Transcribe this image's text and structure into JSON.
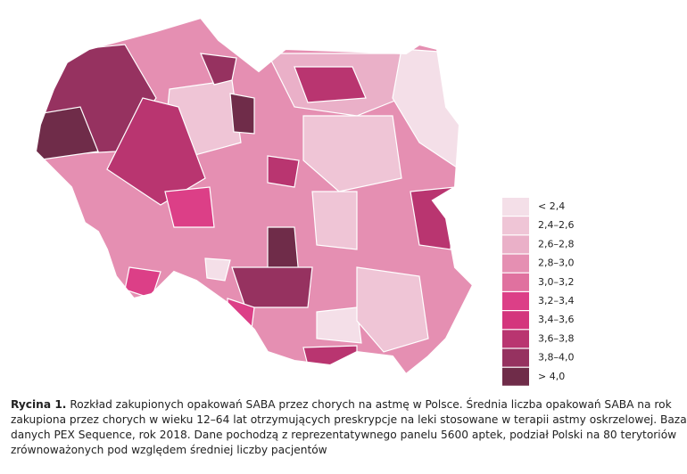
{
  "legend": {
    "items": [
      {
        "label": "< 2,4",
        "color": "#f4dfe8"
      },
      {
        "label": "2,4–2,6",
        "color": "#efc5d6"
      },
      {
        "label": "2,6–2,8",
        "color": "#eab0c8"
      },
      {
        "label": "2,8–3,0",
        "color": "#e58fb2"
      },
      {
        "label": "3,0–3,2",
        "color": "#e0719f"
      },
      {
        "label": "3,2–3,4",
        "color": "#dc3f87"
      },
      {
        "label": "3,4–3,6",
        "color": "#d4357d"
      },
      {
        "label": "3,6–3,8",
        "color": "#b93570"
      },
      {
        "label": "3,8–4,0",
        "color": "#963260"
      },
      {
        "label": "> 4,0",
        "color": "#6f2c49"
      }
    ]
  },
  "caption": {
    "label": "Rycina 1.",
    "lines": [
      "Rozkład zakupionych opakowań SABA przez chorych na astmę w Polsce. Średnia liczba opakowań SABA na rok",
      "zakupiona przez chorych w wieku 12–64 lat otrzymujących preskrypcje na leki stosowane w terapii astmy oskrzelowej. Baza",
      "danych PEX Sequence, rok 2018. Dane pochodzą z reprezentatywnego panelu 5600 aptek, podział Polski na 80 terytoriów",
      "zrównoważonych pod względem średniej liczby pacjentów"
    ]
  }
}
